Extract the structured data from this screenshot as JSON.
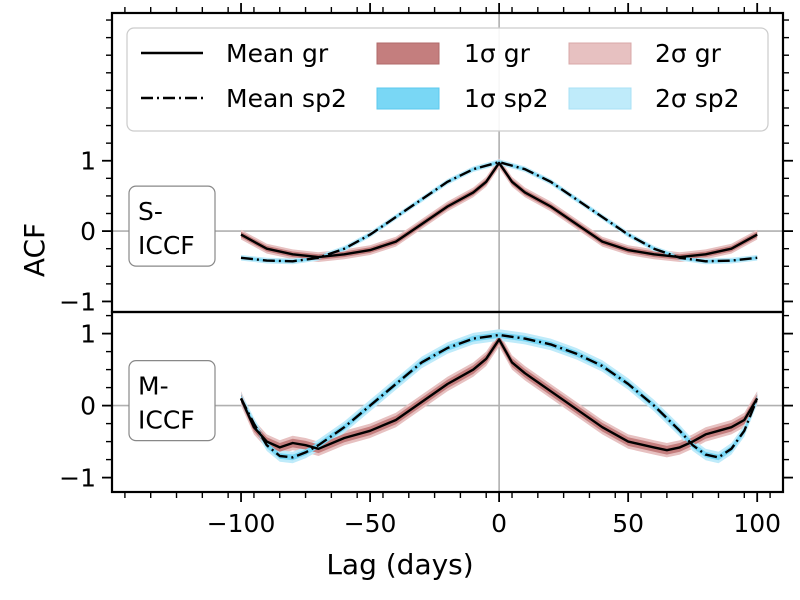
{
  "chart_data": {
    "type": "line",
    "ylabel": "ACF",
    "xlabel": "Lag (days)",
    "xlim": [
      -150,
      110
    ],
    "x_ticks": [
      -100,
      -50,
      0,
      50,
      100
    ],
    "x_tick_labels": [
      "−100",
      "−50",
      "0",
      "50",
      "100"
    ],
    "legend": {
      "location": "upper",
      "entries": [
        "Mean gr",
        "Mean sp2",
        "1σ gr",
        "1σ sp2",
        "2σ gr",
        "2σ sp2"
      ],
      "colors": {
        "gr_1sigma": "#c47e7e",
        "gr_2sigma": "#e7c1c1",
        "sp2_1sigma": "#79d7f5",
        "sp2_2sigma": "#bfebfa"
      }
    },
    "panels": [
      {
        "label": "S-\nICCF",
        "label_lines": [
          "S-",
          "ICCF"
        ],
        "ylim": [
          -1.15,
          3.1
        ],
        "y_ticks": [
          -1,
          0,
          1
        ],
        "y_tick_labels": [
          "−1",
          "0",
          "1"
        ],
        "series": [
          {
            "name": "Mean gr",
            "x": [
              -100,
              -90,
              -80,
              -70,
              -60,
              -50,
              -40,
              -30,
              -20,
              -10,
              -5,
              0,
              5,
              10,
              20,
              30,
              40,
              50,
              60,
              70,
              80,
              90,
              100
            ],
            "y": [
              -0.05,
              -0.25,
              -0.33,
              -0.37,
              -0.33,
              -0.27,
              -0.15,
              0.1,
              0.35,
              0.55,
              0.7,
              0.97,
              0.7,
              0.55,
              0.35,
              0.1,
              -0.15,
              -0.27,
              -0.33,
              -0.37,
              -0.33,
              -0.25,
              -0.05
            ],
            "band1": 0.04,
            "band2": 0.07
          },
          {
            "name": "Mean sp2",
            "x": [
              -100,
              -90,
              -80,
              -70,
              -60,
              -50,
              -40,
              -30,
              -20,
              -10,
              0,
              10,
              20,
              30,
              40,
              50,
              60,
              70,
              80,
              90,
              100
            ],
            "y": [
              -0.38,
              -0.42,
              -0.43,
              -0.38,
              -0.25,
              -0.05,
              0.2,
              0.45,
              0.7,
              0.88,
              0.98,
              0.88,
              0.7,
              0.45,
              0.2,
              -0.05,
              -0.25,
              -0.38,
              -0.43,
              -0.42,
              -0.38
            ],
            "band1": 0.02,
            "band2": 0.04
          }
        ]
      },
      {
        "label": "M-\nICCF",
        "label_lines": [
          "M-",
          "ICCF"
        ],
        "ylim": [
          -1.2,
          1.3
        ],
        "y_ticks": [
          -1,
          0,
          1
        ],
        "y_tick_labels": [
          "−1",
          "0",
          "1"
        ],
        "series": [
          {
            "name": "Mean gr",
            "x": [
              -100,
              -95,
              -90,
              -85,
              -80,
              -75,
              -70,
              -60,
              -50,
              -40,
              -30,
              -20,
              -10,
              -5,
              0,
              5,
              10,
              20,
              30,
              40,
              50,
              60,
              65,
              70,
              75,
              80,
              85,
              90,
              95,
              100
            ],
            "y": [
              0.1,
              -0.3,
              -0.5,
              -0.58,
              -0.52,
              -0.55,
              -0.6,
              -0.45,
              -0.35,
              -0.2,
              0.05,
              0.3,
              0.5,
              0.65,
              0.92,
              0.6,
              0.45,
              0.2,
              -0.05,
              -0.3,
              -0.5,
              -0.58,
              -0.62,
              -0.58,
              -0.5,
              -0.4,
              -0.35,
              -0.3,
              -0.2,
              0.1
            ],
            "band1": 0.06,
            "band2": 0.1
          },
          {
            "name": "Mean sp2",
            "x": [
              -100,
              -95,
              -90,
              -85,
              -80,
              -75,
              -70,
              -60,
              -50,
              -40,
              -30,
              -20,
              -10,
              0,
              10,
              20,
              30,
              40,
              50,
              60,
              70,
              75,
              80,
              85,
              90,
              95,
              100
            ],
            "y": [
              0.1,
              -0.25,
              -0.55,
              -0.7,
              -0.72,
              -0.65,
              -0.55,
              -0.3,
              0.0,
              0.3,
              0.6,
              0.8,
              0.93,
              0.98,
              0.93,
              0.85,
              0.72,
              0.55,
              0.3,
              0.0,
              -0.35,
              -0.55,
              -0.68,
              -0.72,
              -0.6,
              -0.35,
              0.1
            ],
            "band1": 0.04,
            "band2": 0.08
          }
        ]
      }
    ]
  }
}
